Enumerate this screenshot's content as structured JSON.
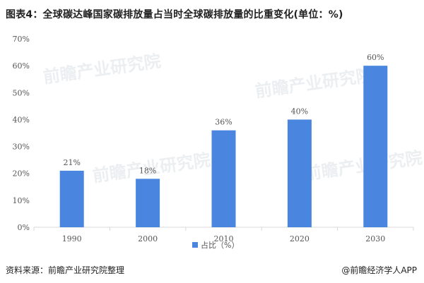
{
  "title": "图表4：全球碳达峰国家碳排放量占当时全球碳排放量的比重变化(单位：%)",
  "source": "资料来源：前瞻产业研究院整理",
  "brand": "@前瞻经济学人APP",
  "watermark": "前瞻产业研究院",
  "colors": {
    "bar": "#4a86e0",
    "axis": "#d9d9d9",
    "text": "#555555"
  },
  "chart_data": {
    "type": "bar",
    "categories": [
      "1990",
      "2000",
      "2010",
      "2020",
      "2030"
    ],
    "series": [
      {
        "name": "占比（%）",
        "values": [
          21,
          18,
          36,
          40,
          60
        ]
      }
    ],
    "data_labels": [
      "21%",
      "18%",
      "36%",
      "40%",
      "60%"
    ],
    "yticks": [
      "0%",
      "10%",
      "20%",
      "30%",
      "40%",
      "50%",
      "60%",
      "70%"
    ],
    "ylim": [
      0,
      70
    ],
    "legend_position": "bottom",
    "grid": false
  }
}
